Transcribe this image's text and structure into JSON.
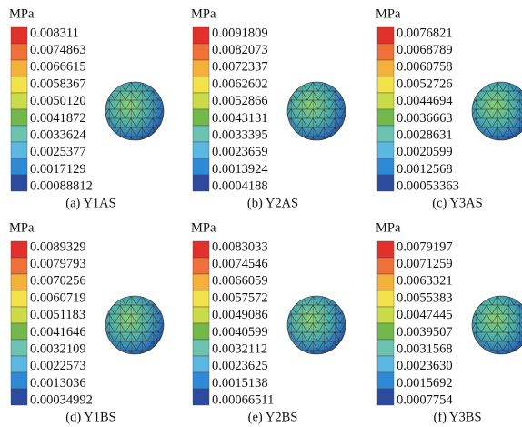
{
  "panels": [
    {
      "unit": "MPa",
      "labels": [
        "0.008311",
        "0.0074863",
        "0.0066615",
        "0.0058367",
        "0.0050120",
        "0.0041872",
        "0.0033624",
        "0.0025377",
        "0.0017129",
        "0.00088812"
      ],
      "caption": "(a) Y1AS"
    },
    {
      "unit": "MPa",
      "labels": [
        "0.0091809",
        "0.0082073",
        "0.0072337",
        "0.0062602",
        "0.0052866",
        "0.0043131",
        "0.0033395",
        "0.0023659",
        "0.0013924",
        "0.0004188"
      ],
      "caption": "(b) Y2AS"
    },
    {
      "unit": "MPa",
      "labels": [
        "0.0076821",
        "0.0068789",
        "0.0060758",
        "0.0052726",
        "0.0044694",
        "0.0036663",
        "0.0028631",
        "0.0020599",
        "0.0012568",
        "0.00053363"
      ],
      "caption": "(c) Y3AS"
    },
    {
      "unit": "MPa",
      "labels": [
        "0.0089329",
        "0.0079793",
        "0.0070256",
        "0.0060719",
        "0.0051183",
        "0.0041646",
        "0.0032109",
        "0.0022573",
        "0.0013036",
        "0.00034992"
      ],
      "caption": "(d) Y1BS"
    },
    {
      "unit": "MPa",
      "labels": [
        "0.0083033",
        "0.0074546",
        "0.0066059",
        "0.0057572",
        "0.0049086",
        "0.0040599",
        "0.0032112",
        "0.0023625",
        "0.0015138",
        "0.00066511"
      ],
      "caption": "(e) Y2BS"
    },
    {
      "unit": "MPa",
      "labels": [
        "0.0079197",
        "0.0071259",
        "0.0063321",
        "0.0055383",
        "0.0047445",
        "0.0039507",
        "0.0031568",
        "0.0023630",
        "0.0015692",
        "0.0007754"
      ],
      "caption": "(f) Y3BS"
    }
  ]
}
